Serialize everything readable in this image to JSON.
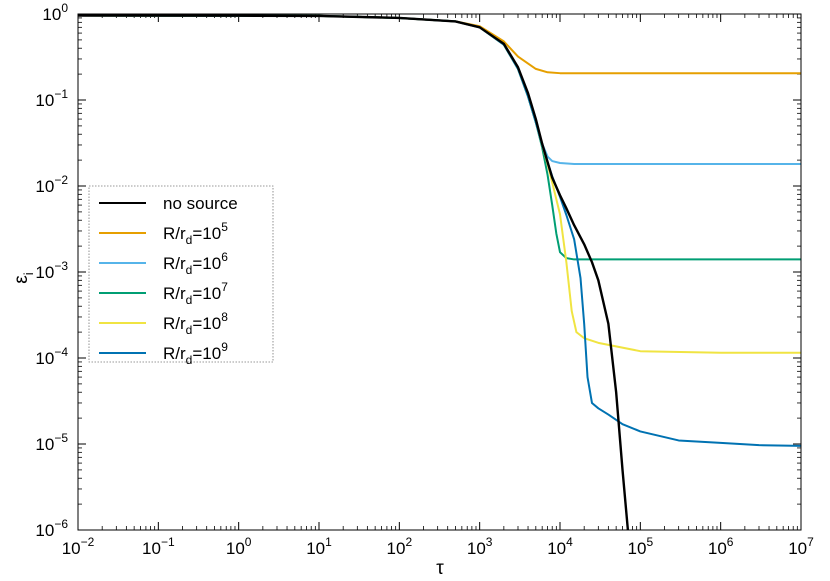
{
  "chart_data": {
    "type": "line",
    "xlabel": "τ",
    "ylabel": {
      "base": "ε",
      "sub": "i"
    },
    "xscale": "log",
    "yscale": "log",
    "xlim": [
      0.01,
      10000000
    ],
    "ylim": [
      1e-06,
      1
    ],
    "x_ticks": [
      {
        "value": 0.01,
        "base": "10",
        "exp": "−2"
      },
      {
        "value": 0.1,
        "base": "10",
        "exp": "−1"
      },
      {
        "value": 1,
        "base": "10",
        "exp": "0"
      },
      {
        "value": 10,
        "base": "10",
        "exp": "1"
      },
      {
        "value": 100,
        "base": "10",
        "exp": "2"
      },
      {
        "value": 1000,
        "base": "10",
        "exp": "3"
      },
      {
        "value": 10000,
        "base": "10",
        "exp": "4"
      },
      {
        "value": 100000,
        "base": "10",
        "exp": "5"
      },
      {
        "value": 1000000,
        "base": "10",
        "exp": "6"
      },
      {
        "value": 10000000,
        "base": "10",
        "exp": "7"
      }
    ],
    "y_ticks": [
      {
        "value": 1e-06,
        "base": "10",
        "exp": "−6"
      },
      {
        "value": 1e-05,
        "base": "10",
        "exp": "−5"
      },
      {
        "value": 0.0001,
        "base": "10",
        "exp": "−4"
      },
      {
        "value": 0.001,
        "base": "10",
        "exp": "−3"
      },
      {
        "value": 0.01,
        "base": "10",
        "exp": "−2"
      },
      {
        "value": 0.1,
        "base": "10",
        "exp": "−1"
      },
      {
        "value": 1,
        "base": "10",
        "exp": "0"
      }
    ],
    "grid": false,
    "legend_position": "middle-left",
    "series": [
      {
        "name": "no source",
        "legend": {
          "main": "no source",
          "sub": "",
          "eq": "",
          "exp": ""
        },
        "color": "#000000",
        "x": [
          0.01,
          1,
          10,
          100,
          500,
          1000,
          2000,
          3000,
          4000,
          5000,
          6000,
          8000,
          10000,
          12000,
          15000,
          20000,
          25000,
          30000,
          40000,
          50000,
          60000,
          70000
        ],
        "y": [
          0.96,
          0.955,
          0.95,
          0.9,
          0.82,
          0.7,
          0.45,
          0.24,
          0.12,
          0.06,
          0.031,
          0.0125,
          0.0078,
          0.0055,
          0.0035,
          0.0021,
          0.0013,
          0.0008,
          0.00025,
          4e-05,
          5e-06,
          1e-06
        ]
      },
      {
        "name": "R/r_d=10^5",
        "legend": {
          "main": "R/r",
          "sub": "d",
          "eq": "=10",
          "exp": "5"
        },
        "color": "#e69f00",
        "x": [
          0.01,
          1,
          10,
          100,
          500,
          1000,
          2000,
          3000,
          5000,
          7000,
          10000,
          100000,
          10000000
        ],
        "y": [
          0.96,
          0.955,
          0.95,
          0.9,
          0.82,
          0.72,
          0.48,
          0.32,
          0.23,
          0.21,
          0.205,
          0.205,
          0.205
        ]
      },
      {
        "name": "R/r_d=10^6",
        "legend": {
          "main": "R/r",
          "sub": "d",
          "eq": "=10",
          "exp": "6"
        },
        "color": "#56b4e9",
        "x": [
          0.01,
          1,
          10,
          100,
          500,
          1000,
          2000,
          3000,
          4000,
          5000,
          6000,
          7000,
          8000,
          10000,
          15000,
          100000,
          10000000
        ],
        "y": [
          0.96,
          0.955,
          0.95,
          0.9,
          0.82,
          0.7,
          0.44,
          0.23,
          0.11,
          0.055,
          0.031,
          0.022,
          0.0195,
          0.0185,
          0.018,
          0.018,
          0.018
        ]
      },
      {
        "name": "R/r_d=10^7",
        "legend": {
          "main": "R/r",
          "sub": "d",
          "eq": "=10",
          "exp": "7"
        },
        "color": "#009e73",
        "x": [
          0.01,
          1,
          10,
          100,
          500,
          1000,
          2000,
          3000,
          4000,
          5000,
          6000,
          7000,
          8000,
          9000,
          10000,
          12000,
          15000,
          100000,
          10000000
        ],
        "y": [
          0.96,
          0.955,
          0.95,
          0.9,
          0.82,
          0.7,
          0.44,
          0.23,
          0.11,
          0.055,
          0.028,
          0.0135,
          0.006,
          0.0028,
          0.0017,
          0.00145,
          0.0014,
          0.0014,
          0.0014
        ]
      },
      {
        "name": "R/r_d=10^8",
        "legend": {
          "main": "R/r",
          "sub": "d",
          "eq": "=10",
          "exp": "8"
        },
        "color": "#f0e442",
        "x": [
          0.01,
          1,
          10,
          100,
          500,
          1000,
          2000,
          3000,
          4000,
          5000,
          6000,
          7000,
          8000,
          10000,
          12000,
          14000,
          16000,
          20000,
          30000,
          100000,
          1000000,
          10000000
        ],
        "y": [
          0.96,
          0.955,
          0.95,
          0.9,
          0.82,
          0.7,
          0.44,
          0.23,
          0.11,
          0.055,
          0.03,
          0.018,
          0.011,
          0.0047,
          0.0013,
          0.00035,
          0.0002,
          0.00017,
          0.00015,
          0.00012,
          0.000115,
          0.000115
        ]
      },
      {
        "name": "R/r_d=10^9",
        "legend": {
          "main": "R/r",
          "sub": "d",
          "eq": "=10",
          "exp": "9"
        },
        "color": "#0072b2",
        "x": [
          0.01,
          1,
          10,
          100,
          500,
          1000,
          2000,
          3000,
          4000,
          5000,
          6000,
          7000,
          8000,
          10000,
          12000,
          15000,
          18000,
          20000,
          22000,
          25000,
          30000,
          40000,
          60000,
          100000,
          300000,
          1000000,
          3000000,
          10000000
        ],
        "y": [
          0.96,
          0.955,
          0.95,
          0.9,
          0.82,
          0.7,
          0.44,
          0.23,
          0.11,
          0.055,
          0.03,
          0.019,
          0.013,
          0.0075,
          0.0046,
          0.0024,
          0.00085,
          0.00025,
          6e-05,
          3e-05,
          2.6e-05,
          2.2e-05,
          1.7e-05,
          1.4e-05,
          1.1e-05,
          1.03e-05,
          9.7e-06,
          9.5e-06
        ]
      }
    ]
  }
}
